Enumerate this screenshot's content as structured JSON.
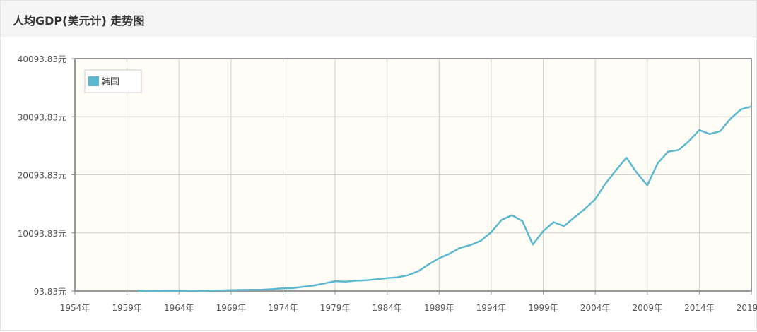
{
  "header": {
    "title": "人均GDP(美元计) 走势图"
  },
  "chart_data": {
    "type": "line",
    "title": "人均GDP(美元计) 走势图",
    "xlabel": "",
    "ylabel": "",
    "xlim": [
      1954,
      2019
    ],
    "ylim": [
      93.83,
      40093.83
    ],
    "x_ticks": [
      "1954年",
      "1959年",
      "1964年",
      "1969年",
      "1974年",
      "1979年",
      "1984年",
      "1989年",
      "1994年",
      "1999年",
      "2004年",
      "2009年",
      "2014年",
      "2019年"
    ],
    "y_ticks": [
      "93.83元",
      "10093.83元",
      "20093.83元",
      "30093.83元",
      "40093.83元"
    ],
    "legend_position": "top-left",
    "grid": true,
    "colors": {
      "series": "#5bb8cf",
      "plot_bg": "#fffdf5",
      "grid": "#d0d0d0",
      "axis": "#999999"
    },
    "series": [
      {
        "name": "韩国",
        "x": [
          1960,
          1961,
          1962,
          1963,
          1964,
          1965,
          1966,
          1967,
          1968,
          1969,
          1970,
          1971,
          1972,
          1973,
          1974,
          1975,
          1976,
          1977,
          1978,
          1979,
          1980,
          1981,
          1982,
          1983,
          1984,
          1985,
          1986,
          1987,
          1988,
          1989,
          1990,
          1991,
          1992,
          1993,
          1994,
          1995,
          1996,
          1997,
          1998,
          1999,
          2000,
          2001,
          2002,
          2003,
          2004,
          2005,
          2006,
          2007,
          2008,
          2009,
          2010,
          2011,
          2012,
          2013,
          2014,
          2015,
          2016,
          2017,
          2018,
          2019
        ],
        "values": [
          158,
          94,
          106,
          146,
          124,
          109,
          131,
          162,
          198,
          244,
          279,
          301,
          324,
          406,
          564,
          617,
          834,
          1055,
          1406,
          1784,
          1704,
          1870,
          1938,
          2118,
          2318,
          2457,
          2803,
          3511,
          4686,
          5738,
          6516,
          7523,
          8002,
          8741,
          10206,
          12333,
          13137,
          12131,
          8085,
          10409,
          11948,
          11253,
          12789,
          14209,
          15908,
          18640,
          20888,
          23061,
          20430,
          18292,
          22087,
          24080,
          24359,
          25890,
          27811,
          27105,
          27608,
          29743,
          31363,
          31846
        ]
      }
    ]
  }
}
